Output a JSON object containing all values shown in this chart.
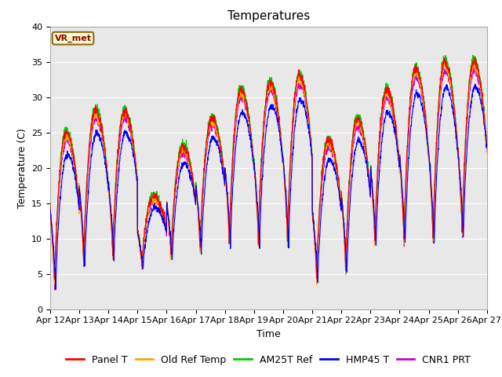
{
  "title": "Temperatures",
  "ylabel": "Temperature (C)",
  "xlabel": "Time",
  "annotation": "VR_met",
  "ylim": [
    0,
    40
  ],
  "yticks": [
    0,
    5,
    10,
    15,
    20,
    25,
    30,
    35,
    40
  ],
  "xtick_labels": [
    "Apr 12",
    "Apr 13",
    "Apr 14",
    "Apr 15",
    "Apr 16",
    "Apr 17",
    "Apr 18",
    "Apr 19",
    "Apr 20",
    "Apr 21",
    "Apr 22",
    "Apr 23",
    "Apr 24",
    "Apr 25",
    "Apr 26",
    "Apr 27"
  ],
  "series": [
    {
      "name": "Panel T",
      "color": "#FF0000"
    },
    {
      "name": "Old Ref Temp",
      "color": "#FFA500"
    },
    {
      "name": "AM25T Ref",
      "color": "#00CC00"
    },
    {
      "name": "HMP45 T",
      "color": "#0000FF"
    },
    {
      "name": "CNR1 PRT",
      "color": "#CC00CC"
    }
  ],
  "background_color": "#E8E8E8",
  "figure_bg": "#FFFFFF",
  "grid_color": "#FFFFFF",
  "title_fontsize": 11,
  "axis_fontsize": 9,
  "tick_fontsize": 8,
  "legend_fontsize": 9,
  "n_points": 2160,
  "days": 15,
  "base_mins": [
    3,
    6,
    7,
    6,
    7,
    8,
    9,
    9,
    9,
    4,
    5,
    9,
    9,
    9,
    10
  ],
  "base_maxs": [
    25,
    28,
    28,
    16,
    23,
    27,
    31,
    32,
    33,
    24,
    27,
    31,
    34,
    35,
    35
  ]
}
